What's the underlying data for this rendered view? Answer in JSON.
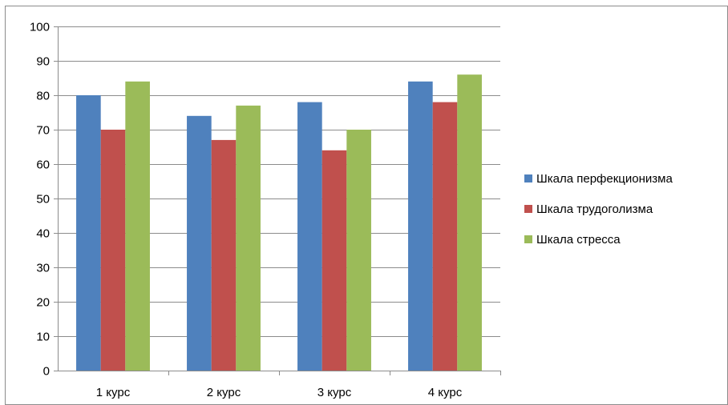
{
  "chart_data": {
    "type": "bar",
    "title": "",
    "xlabel": "",
    "ylabel": "",
    "categories": [
      "1 курс",
      "2 курс",
      "3 курс",
      "4 курс"
    ],
    "yticks": [
      "0",
      "10",
      "20",
      "30",
      "40",
      "50",
      "60",
      "70",
      "80",
      "90",
      "100"
    ],
    "ylim": [
      0,
      100
    ],
    "grid": true,
    "legend_position": "right",
    "series": [
      {
        "name": "Шкала перфекционизма",
        "color": "#4F81BD",
        "values": [
          80,
          74,
          78,
          84
        ]
      },
      {
        "name": "Шкала трудоголизма",
        "color": "#C0504D",
        "values": [
          70,
          67,
          64,
          78
        ]
      },
      {
        "name": "Шкала стресса",
        "color": "#9BBB59",
        "values": [
          84,
          77,
          70,
          86
        ]
      }
    ]
  }
}
